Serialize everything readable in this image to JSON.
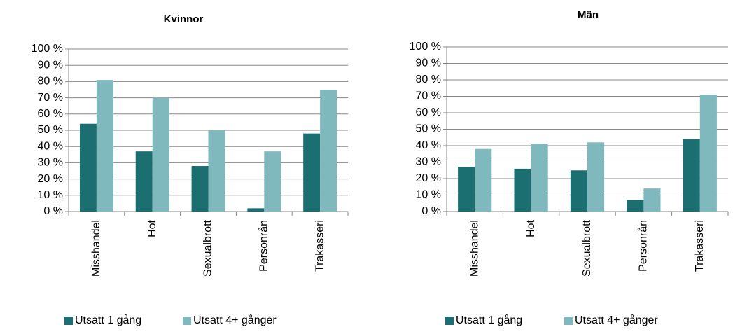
{
  "chart_data": [
    {
      "type": "bar",
      "title": "Kvinnor",
      "categories": [
        "Misshandel",
        "Hot",
        "Sexualbrott",
        "Personrån",
        "Trakasseri"
      ],
      "series": [
        {
          "name": "Utsatt 1 gång",
          "color": "#1b6f71",
          "values": [
            54,
            37,
            28,
            2,
            48
          ]
        },
        {
          "name": "Utsatt 4+ gånger",
          "color": "#80b9bd",
          "values": [
            81,
            70,
            50,
            37,
            75
          ]
        }
      ],
      "ylim": [
        0,
        100
      ],
      "yticks": [
        {
          "value": 0,
          "label": "0 %"
        },
        {
          "value": 10,
          "label": "10 %"
        },
        {
          "value": 20,
          "label": "20 %"
        },
        {
          "value": 30,
          "label": "30 %"
        },
        {
          "value": 40,
          "label": "40 %"
        },
        {
          "value": 50,
          "label": "50 %"
        },
        {
          "value": 60,
          "label": "60 %"
        },
        {
          "value": 70,
          "label": "70 %"
        },
        {
          "value": 80,
          "label": "80 %"
        },
        {
          "value": 90,
          "label": "90 %"
        },
        {
          "value": 100,
          "label": "100 %"
        }
      ],
      "grid": true,
      "legend": "bottom"
    },
    {
      "type": "bar",
      "title": "Män",
      "categories": [
        "Misshandel",
        "Hot",
        "Sexualbrott",
        "Personrån",
        "Trakasseri"
      ],
      "series": [
        {
          "name": "Utsatt 1 gång",
          "color": "#1b6f71",
          "values": [
            27,
            26,
            25,
            7,
            44
          ]
        },
        {
          "name": "Utsatt 4+ gånger",
          "color": "#80b9bd",
          "values": [
            38,
            41,
            42,
            14,
            71
          ]
        }
      ],
      "ylim": [
        0,
        100
      ],
      "yticks": [
        {
          "value": 0,
          "label": "0 %"
        },
        {
          "value": 10,
          "label": "10 %"
        },
        {
          "value": 20,
          "label": "20 %"
        },
        {
          "value": 30,
          "label": "30 %"
        },
        {
          "value": 40,
          "label": "40 %"
        },
        {
          "value": 50,
          "label": "50 %"
        },
        {
          "value": 60,
          "label": "60 %"
        },
        {
          "value": 70,
          "label": "70 %"
        },
        {
          "value": 80,
          "label": "80 %"
        },
        {
          "value": 90,
          "label": "90 %"
        },
        {
          "value": 100,
          "label": "100 %"
        }
      ],
      "grid": true,
      "legend": "bottom"
    }
  ]
}
